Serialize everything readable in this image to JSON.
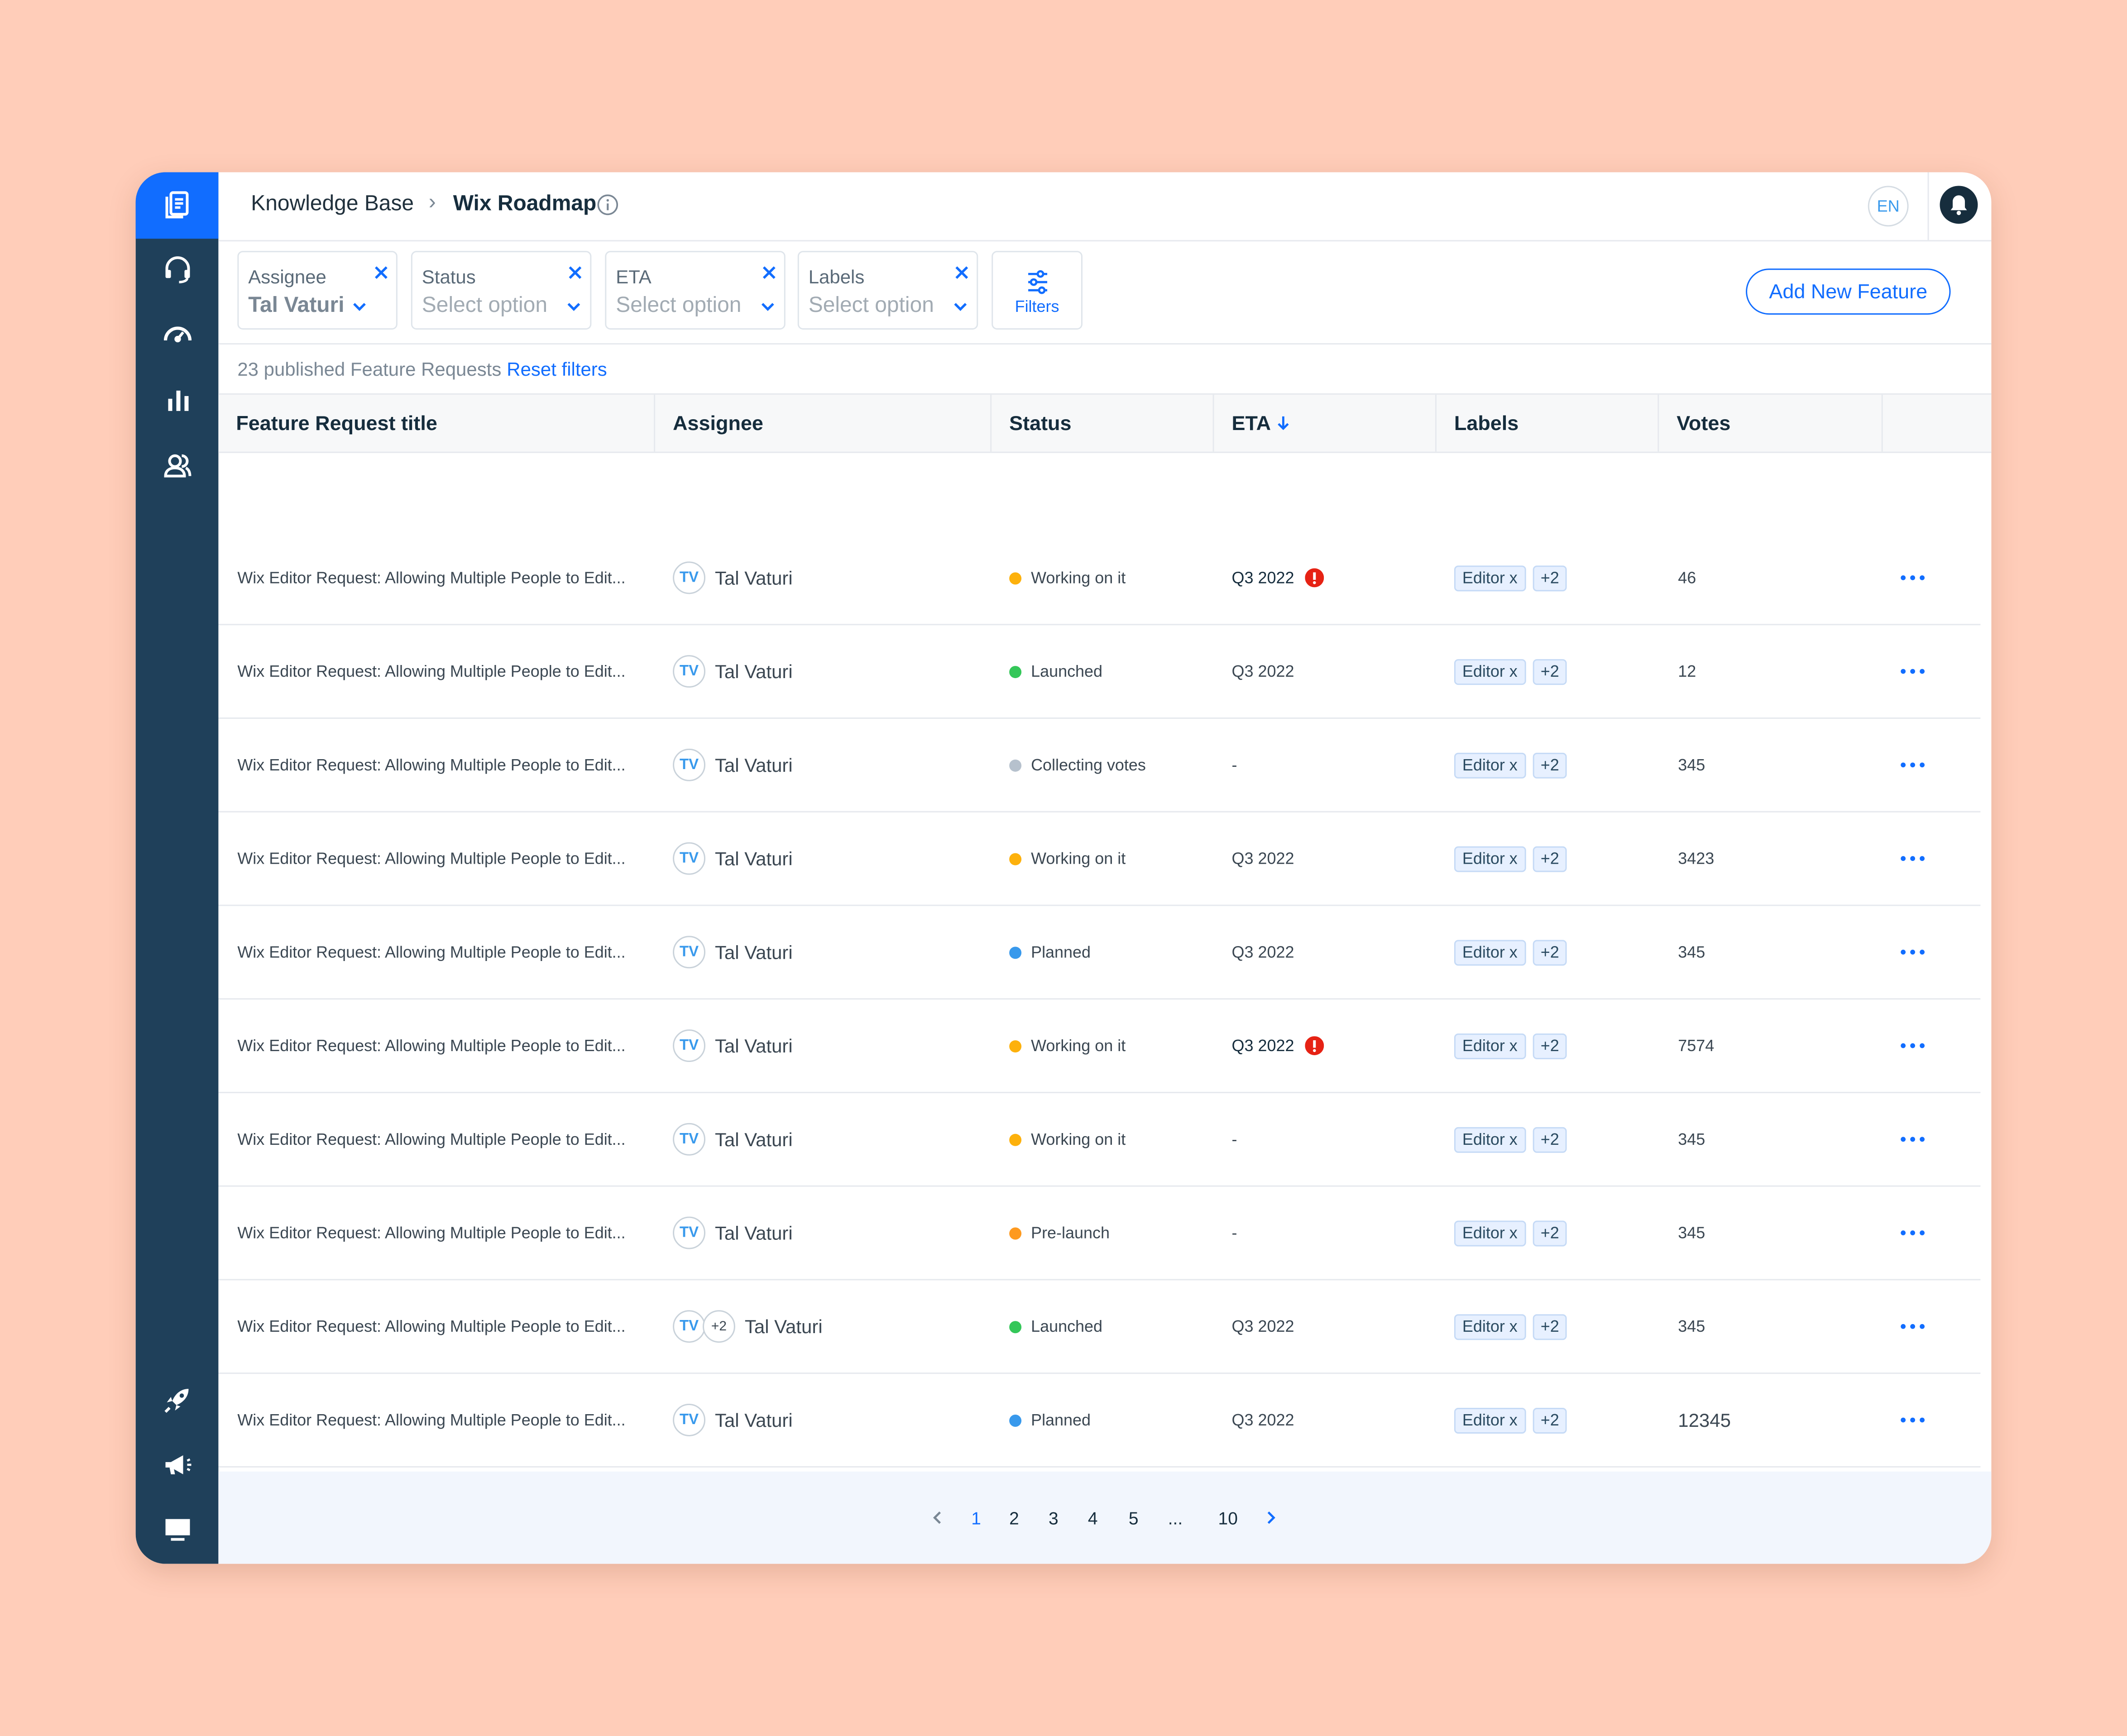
{
  "breadcrumb": {
    "parent": "Knowledge Base",
    "separator": "›",
    "current": "Wix Roadmap"
  },
  "header": {
    "language": "EN"
  },
  "filters": [
    {
      "label": "Assignee",
      "value": "Tal Vaturi",
      "selected": true
    },
    {
      "label": "Status",
      "value": "Select option",
      "selected": false
    },
    {
      "label": "ETA",
      "value": "Select option",
      "selected": false
    },
    {
      "label": "Labels",
      "value": "Select option",
      "selected": false
    }
  ],
  "filters_button": "Filters",
  "add_button": "Add New Feature",
  "summary": {
    "text": "23 published Feature Requests",
    "reset": "Reset filters"
  },
  "columns": [
    "Feature Request title",
    "Assignee",
    "Status",
    "ETA",
    "Labels",
    "Votes"
  ],
  "rows": [
    {
      "title": "Wix Editor Request: Allowing Multiple People to Edit...",
      "assignee": "Tal Vaturi",
      "initials": "TV",
      "extra": "",
      "status": "Working on it",
      "status_color": "#FDB10C",
      "eta": "Q3 2022",
      "eta_alert": true,
      "label": "Editor x",
      "label_more": "+2",
      "votes": "46",
      "votes_large": false
    },
    {
      "title": "Wix Editor Request: Allowing Multiple People to Edit...",
      "assignee": "Tal Vaturi",
      "initials": "TV",
      "extra": "",
      "status": "Launched",
      "status_color": "#34C759",
      "eta": "Q3 2022",
      "eta_alert": false,
      "label": "Editor x",
      "label_more": "+2",
      "votes": "12",
      "votes_large": false
    },
    {
      "title": "Wix Editor Request: Allowing Multiple People to Edit...",
      "assignee": "Tal Vaturi",
      "initials": "TV",
      "extra": "",
      "status": "Collecting votes",
      "status_color": "#B6C1CD",
      "eta": "-",
      "eta_alert": false,
      "label": "Editor x",
      "label_more": "+2",
      "votes": "345",
      "votes_large": false
    },
    {
      "title": "Wix Editor Request: Allowing Multiple People to Edit...",
      "assignee": "Tal Vaturi",
      "initials": "TV",
      "extra": "",
      "status": "Working on it",
      "status_color": "#FDB10C",
      "eta": "Q3 2022",
      "eta_alert": false,
      "label": "Editor x",
      "label_more": "+2",
      "votes": "3423",
      "votes_large": false
    },
    {
      "title": "Wix Editor Request: Allowing Multiple People to Edit...",
      "assignee": "Tal Vaturi",
      "initials": "TV",
      "extra": "",
      "status": "Planned",
      "status_color": "#3899EC",
      "eta": "Q3 2022",
      "eta_alert": false,
      "label": "Editor x",
      "label_more": "+2",
      "votes": "345",
      "votes_large": false
    },
    {
      "title": "Wix Editor Request: Allowing Multiple People to Edit...",
      "assignee": "Tal Vaturi",
      "initials": "TV",
      "extra": "",
      "status": "Working on it",
      "status_color": "#FDB10C",
      "eta": "Q3 2022",
      "eta_alert": true,
      "label": "Editor x",
      "label_more": "+2",
      "votes": "7574",
      "votes_large": false
    },
    {
      "title": "Wix Editor Request: Allowing Multiple People to Edit...",
      "assignee": "Tal Vaturi",
      "initials": "TV",
      "extra": "",
      "status": "Working on it",
      "status_color": "#FDB10C",
      "eta": "-",
      "eta_alert": false,
      "label": "Editor x",
      "label_more": "+2",
      "votes": "345",
      "votes_large": false
    },
    {
      "title": "Wix Editor Request: Allowing Multiple People to Edit...",
      "assignee": "Tal Vaturi",
      "initials": "TV",
      "extra": "",
      "status": "Pre-launch",
      "status_color": "#FE9A1F",
      "eta": "-",
      "eta_alert": false,
      "label": "Editor x",
      "label_more": "+2",
      "votes": "345",
      "votes_large": false
    },
    {
      "title": "Wix Editor Request: Allowing Multiple People to Edit...",
      "assignee": "Tal Vaturi",
      "initials": "TV",
      "extra": "+2",
      "status": "Launched",
      "status_color": "#34C759",
      "eta": "Q3 2022",
      "eta_alert": false,
      "label": "Editor x",
      "label_more": "+2",
      "votes": "345",
      "votes_large": false
    },
    {
      "title": "Wix Editor Request: Allowing Multiple People to Edit...",
      "assignee": "Tal Vaturi",
      "initials": "TV",
      "extra": "",
      "status": "Planned",
      "status_color": "#3899EC",
      "eta": "Q3 2022",
      "eta_alert": false,
      "label": "Editor x",
      "label_more": "+2",
      "votes": "12345",
      "votes_large": true
    }
  ],
  "pagination": {
    "pages": [
      "1",
      "2",
      "3",
      "4",
      "5",
      "...",
      "10"
    ],
    "current": "1"
  },
  "colors": {
    "accent": "#116DFF",
    "sidebar": "#1F405A",
    "background": "#FFCDB9"
  },
  "icons": {
    "sidebar": [
      "knowledge-base-icon",
      "headset-icon",
      "speedometer-icon",
      "bar-chart-icon",
      "users-icon",
      "rocket-icon",
      "megaphone-icon",
      "monitor-icon"
    ],
    "row_action": "more-dots-icon"
  }
}
